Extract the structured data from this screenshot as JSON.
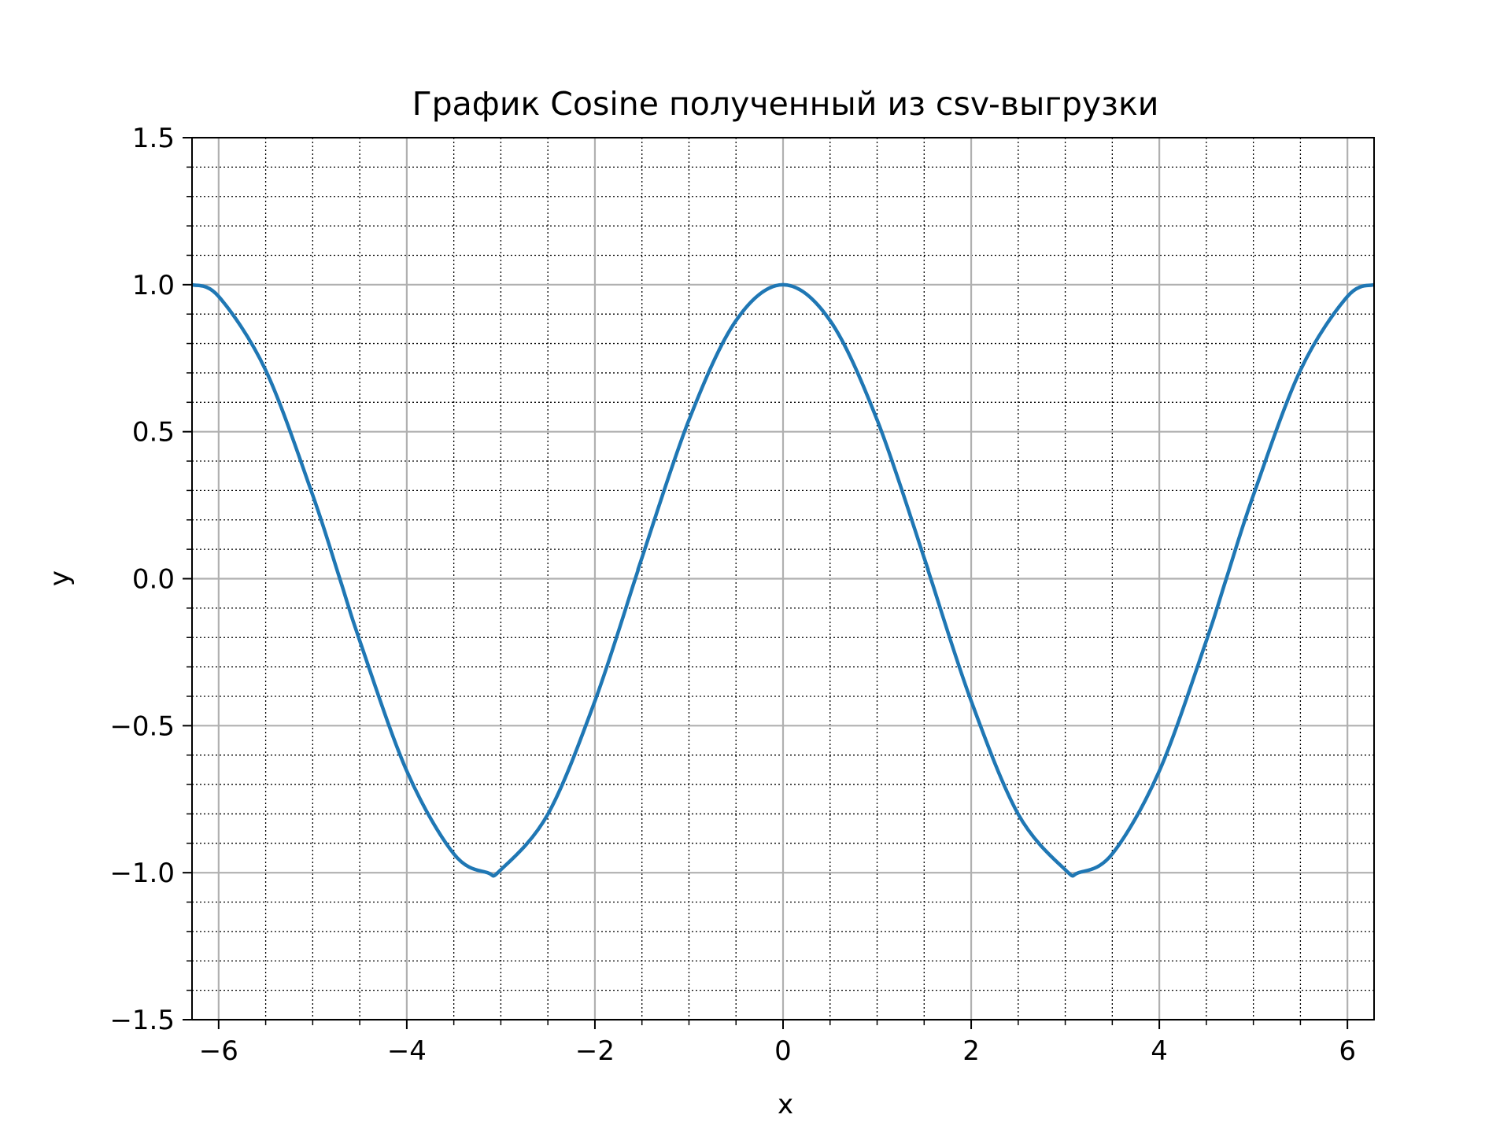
{
  "chart_data": {
    "type": "line",
    "title": "График Cosine полученный из csv-выгрузки",
    "xlabel": "x",
    "ylabel": "y",
    "xlim": [
      -6.283,
      6.283
    ],
    "ylim": [
      -1.5,
      1.5
    ],
    "x_ticks": [
      -6,
      -4,
      -2,
      0,
      2,
      4,
      6
    ],
    "x_tick_labels": [
      "−6",
      "−4",
      "−2",
      "0",
      "2",
      "4",
      "6"
    ],
    "y_ticks": [
      -1.5,
      -1.0,
      -0.5,
      0.0,
      0.5,
      1.0,
      1.5
    ],
    "y_tick_labels": [
      "−1.5",
      "−1.0",
      "−0.5",
      "0.0",
      "0.5",
      "1.0",
      "1.5"
    ],
    "x_minor_step": 0.5,
    "y_minor_step": 0.1,
    "grid": {
      "major": true,
      "minor": true
    },
    "series": [
      {
        "color": "#1f77b4",
        "x": [
          -6.283,
          -6.0,
          -5.5,
          -5.0,
          -4.712,
          -4.5,
          -4.0,
          -3.5,
          -3.142,
          -3.0,
          -2.5,
          -2.0,
          -1.571,
          -1.5,
          -1.0,
          -0.5,
          0.0,
          0.5,
          1.0,
          1.5,
          1.571,
          2.0,
          2.5,
          3.0,
          3.142,
          3.5,
          4.0,
          4.5,
          4.712,
          5.0,
          5.5,
          6.0,
          6.283
        ],
        "y": [
          1.0,
          0.96,
          0.709,
          0.284,
          0.0,
          -0.211,
          -0.654,
          -0.936,
          -1.0,
          -0.99,
          -0.801,
          -0.416,
          0.0,
          0.071,
          0.54,
          0.878,
          1.0,
          0.878,
          0.54,
          0.071,
          0.0,
          -0.416,
          -0.801,
          -0.99,
          -1.0,
          -0.936,
          -0.654,
          -0.211,
          0.0,
          0.284,
          0.709,
          0.96,
          1.0
        ]
      }
    ]
  }
}
